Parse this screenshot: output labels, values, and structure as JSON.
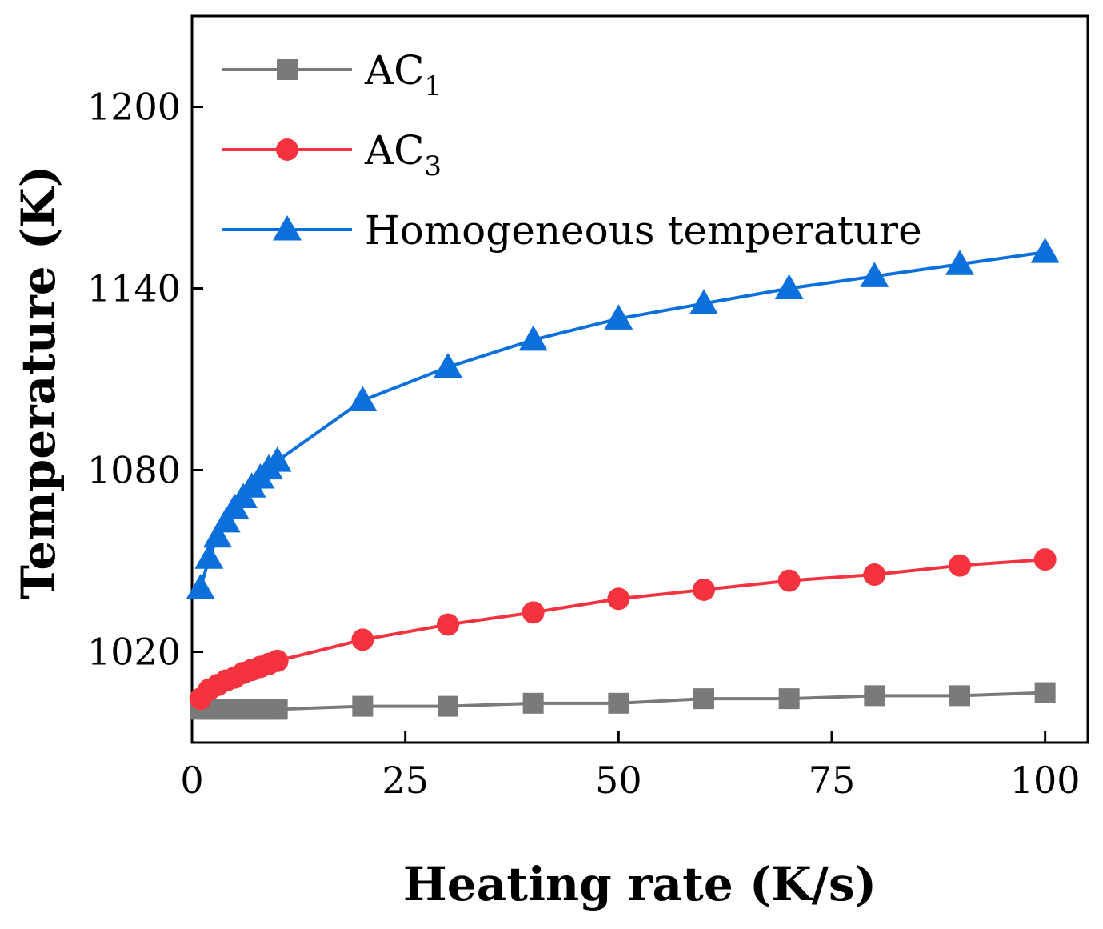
{
  "chart_data": {
    "type": "line",
    "title": "",
    "xlabel": "Heating rate (K/s)",
    "ylabel": "Temperature (K)",
    "xlim": [
      0,
      105
    ],
    "ylim": [
      990,
      1230
    ],
    "xticks": [
      0,
      25,
      50,
      75,
      100
    ],
    "yticks": [
      1020,
      1080,
      1140,
      1200
    ],
    "legend_position": "top-left",
    "series": [
      {
        "name": "AC1",
        "label_main": "AC",
        "label_sub": "1",
        "color": "#7a7a7a",
        "marker": "square",
        "x": [
          1,
          2,
          3,
          4,
          5,
          6,
          7,
          8,
          9,
          10,
          20,
          30,
          40,
          50,
          60,
          70,
          80,
          90,
          100
        ],
        "y": [
          1001,
          1001,
          1001,
          1001,
          1001,
          1001,
          1001,
          1001,
          1001,
          1001,
          1002,
          1002,
          1003,
          1003,
          1004.5,
          1004.5,
          1005.5,
          1005.5,
          1006.5
        ]
      },
      {
        "name": "AC3",
        "label_main": "AC",
        "label_sub": "3",
        "color": "#f5333f",
        "marker": "circle",
        "x": [
          1,
          2,
          3,
          4,
          5,
          6,
          7,
          8,
          9,
          10,
          20,
          30,
          40,
          50,
          60,
          70,
          80,
          90,
          100
        ],
        "y": [
          1004.5,
          1007.5,
          1009,
          1010.5,
          1011.5,
          1013,
          1014,
          1015,
          1016,
          1017,
          1024,
          1029,
          1033,
          1037.5,
          1040.5,
          1043.5,
          1045.5,
          1048.5,
          1050.5
        ]
      },
      {
        "name": "Homogeneous temperature",
        "label_main": "Homogeneous temperature",
        "label_sub": "",
        "color": "#0b6fdc",
        "marker": "triangle",
        "x": [
          1,
          2,
          3,
          4,
          5,
          6,
          7,
          8,
          9,
          10,
          20,
          30,
          40,
          50,
          60,
          70,
          80,
          90,
          100
        ],
        "y": [
          1041,
          1051,
          1058,
          1063,
          1067.5,
          1071,
          1074.5,
          1077.5,
          1080.5,
          1083,
          1103,
          1114,
          1123,
          1130,
          1135,
          1140,
          1144,
          1148,
          1152
        ]
      }
    ]
  }
}
